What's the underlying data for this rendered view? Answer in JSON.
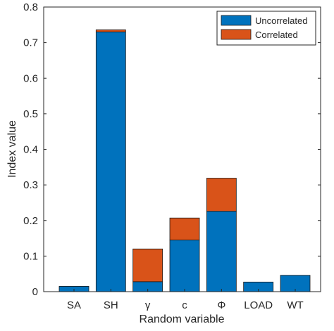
{
  "chart_data": {
    "type": "bar",
    "stacked": true,
    "categories": [
      "SA",
      "SH",
      "γ",
      "c",
      "Φ",
      "LOAD",
      "WT"
    ],
    "series": [
      {
        "name": "Uncorrelated",
        "color": "#0072BD",
        "values": [
          0.015,
          0.73,
          0.028,
          0.145,
          0.226,
          0.027,
          0.046
        ]
      },
      {
        "name": "Correlated",
        "color": "#D95319",
        "values": [
          0.0,
          0.006,
          0.092,
          0.062,
          0.093,
          0.0,
          0.0
        ]
      }
    ],
    "title": "",
    "xlabel": "Random variable",
    "ylabel": "Index value",
    "ylim": [
      0,
      0.8
    ],
    "yticks": [
      "0",
      "0.1",
      "0.2",
      "0.3",
      "0.4",
      "0.5",
      "0.6",
      "0.7",
      "0.8"
    ],
    "grid": false,
    "legend_position": "top-right"
  }
}
